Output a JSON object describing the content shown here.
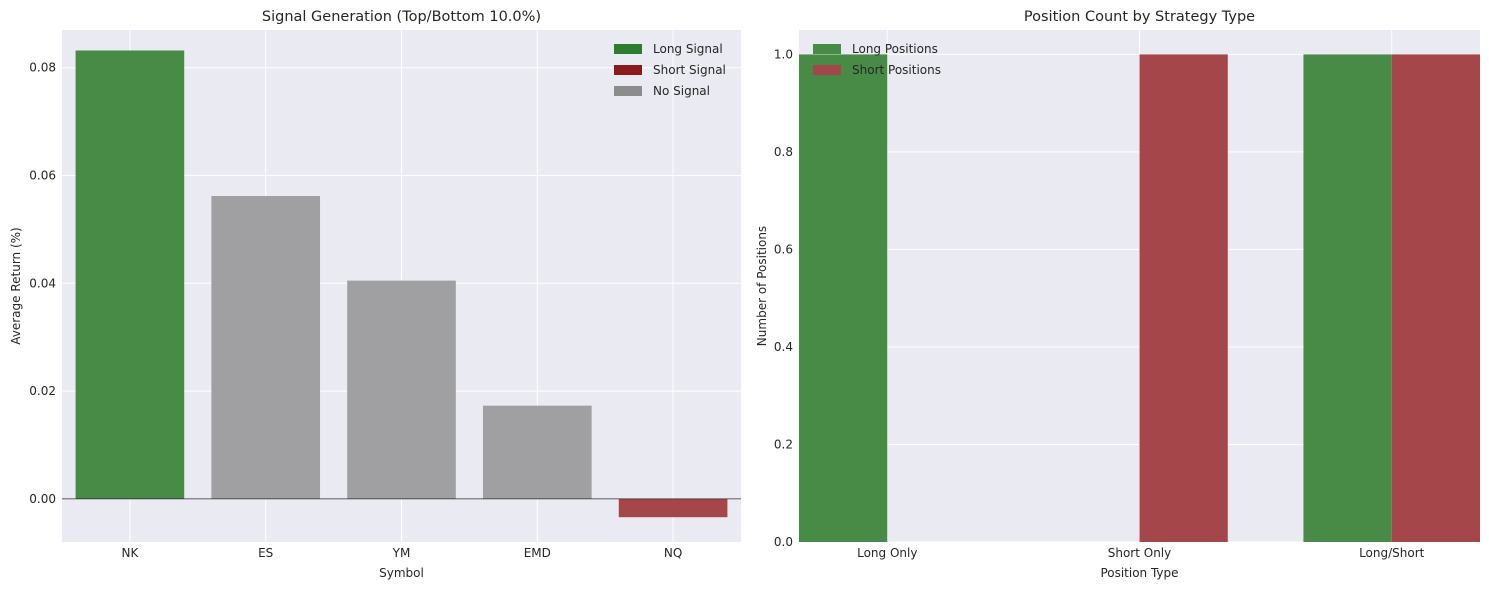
{
  "chart_data": [
    {
      "type": "bar",
      "title": "Signal Generation (Top/Bottom 10.0%)",
      "xlabel": "Symbol",
      "ylabel": "Average Return (%)",
      "categories": [
        "NK",
        "ES",
        "YM",
        "EMD",
        "NQ"
      ],
      "values": [
        0.0832,
        0.0562,
        0.0405,
        0.0173,
        -0.0034
      ],
      "signals": [
        "long",
        "none",
        "none",
        "none",
        "short"
      ],
      "ylim": [
        -0.008,
        0.087
      ],
      "yticks": [
        0.0,
        0.02,
        0.04,
        0.06,
        0.08
      ],
      "ytick_labels": [
        "0.00",
        "0.02",
        "0.04",
        "0.06",
        "0.08"
      ],
      "zero_line": true,
      "grid": true,
      "legend": {
        "placement": "top-right",
        "entries": [
          {
            "label": "Long Signal",
            "key": "long"
          },
          {
            "label": "Short Signal",
            "key": "short"
          },
          {
            "label": "No Signal",
            "key": "none"
          }
        ]
      },
      "colors": {
        "long": "#2e7d2e",
        "short": "#8b1a1a",
        "none": "#8c8c8c",
        "bar_long": "#478b47",
        "bar_short": "#a5464a",
        "bar_none": "#a0a0a2"
      }
    },
    {
      "type": "bar",
      "title": "Position Count by Strategy Type",
      "xlabel": "Position Type",
      "ylabel": "Number of Positions",
      "categories": [
        "Long Only",
        "Short Only",
        "Long/Short"
      ],
      "series": [
        {
          "name": "Long Positions",
          "values": [
            1,
            0,
            1
          ],
          "color": "#478b47"
        },
        {
          "name": "Short Positions",
          "values": [
            0,
            1,
            1
          ],
          "color": "#a5464a"
        }
      ],
      "ylim": [
        0,
        1.05
      ],
      "yticks": [
        0.0,
        0.2,
        0.4,
        0.6,
        0.8,
        1.0
      ],
      "ytick_labels": [
        "0.0",
        "0.2",
        "0.4",
        "0.6",
        "0.8",
        "1.0"
      ],
      "grid": true,
      "legend": {
        "placement": "top-left"
      }
    }
  ]
}
